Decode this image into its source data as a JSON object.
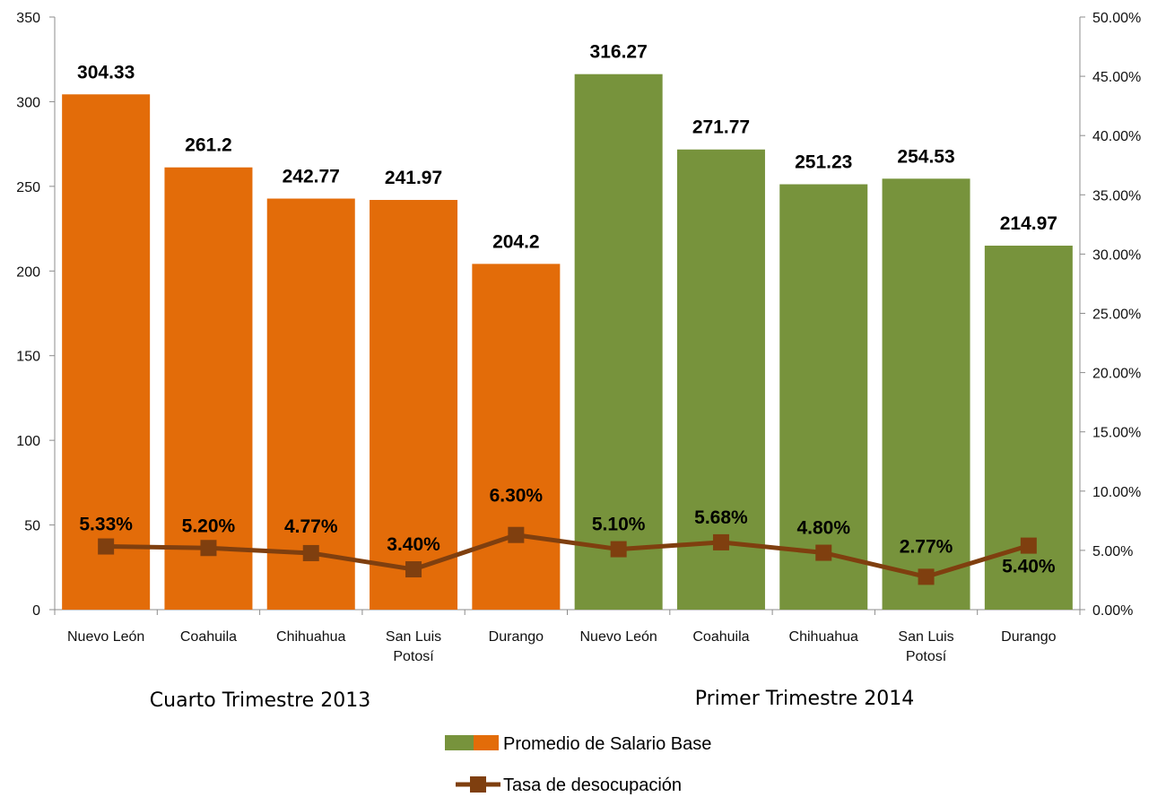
{
  "chart_data": {
    "type": "bar",
    "categories": [
      "Nuevo León",
      "Coahuila",
      "Chihuahua",
      "San Luis Potosí",
      "Durango",
      "Nuevo León",
      "Coahuila",
      "Chihuahua",
      "San Luis Potosí",
      "Durango"
    ],
    "category_lines": [
      [
        "Nuevo León"
      ],
      [
        "Coahuila"
      ],
      [
        "Chihuahua"
      ],
      [
        "San Luis",
        "Potosí"
      ],
      [
        "Durango"
      ],
      [
        "Nuevo León"
      ],
      [
        "Coahuila"
      ],
      [
        "Chihuahua"
      ],
      [
        "San Luis",
        "Potosí"
      ],
      [
        "Durango"
      ]
    ],
    "groups": [
      {
        "label": "Cuarto Trimestre 2013",
        "color": "#E36C09"
      },
      {
        "label": "Primer Trimestre  2014",
        "color": "#77933C"
      }
    ],
    "series": [
      {
        "name": "Promedio de Salario Base",
        "type": "bar",
        "axis": "left",
        "values": [
          304.33,
          261.2,
          242.77,
          241.97,
          204.2,
          316.27,
          271.77,
          251.23,
          254.53,
          214.97
        ],
        "labels": [
          "304.33",
          "261.2",
          "242.77",
          "241.97",
          "204.2",
          "316.27",
          "271.77",
          "251.23",
          "254.53",
          "214.97"
        ]
      },
      {
        "name": "Tasa de desocupación",
        "type": "line",
        "axis": "right",
        "color": "#7F3F0F",
        "values": [
          5.33,
          5.2,
          4.77,
          3.4,
          6.3,
          5.1,
          5.68,
          4.8,
          2.77,
          5.4
        ],
        "labels": [
          "5.33%",
          "5.20%",
          "4.77%",
          "3.40%",
          "6.30%",
          "5.10%",
          "5.68%",
          "4.80%",
          "2.77%",
          "5.40%"
        ]
      }
    ],
    "y_left": {
      "min": 0,
      "max": 350,
      "ticks": [
        "0",
        "50",
        "100",
        "150",
        "200",
        "250",
        "300",
        "350"
      ]
    },
    "y_right": {
      "min": 0,
      "max": 50,
      "ticks": [
        "0.00%",
        "5.00%",
        "10.00%",
        "15.00%",
        "20.00%",
        "25.00%",
        "30.00%",
        "35.00%",
        "40.00%",
        "45.00%",
        "50.00%"
      ]
    },
    "grid": false,
    "legend_position": "bottom-center"
  }
}
